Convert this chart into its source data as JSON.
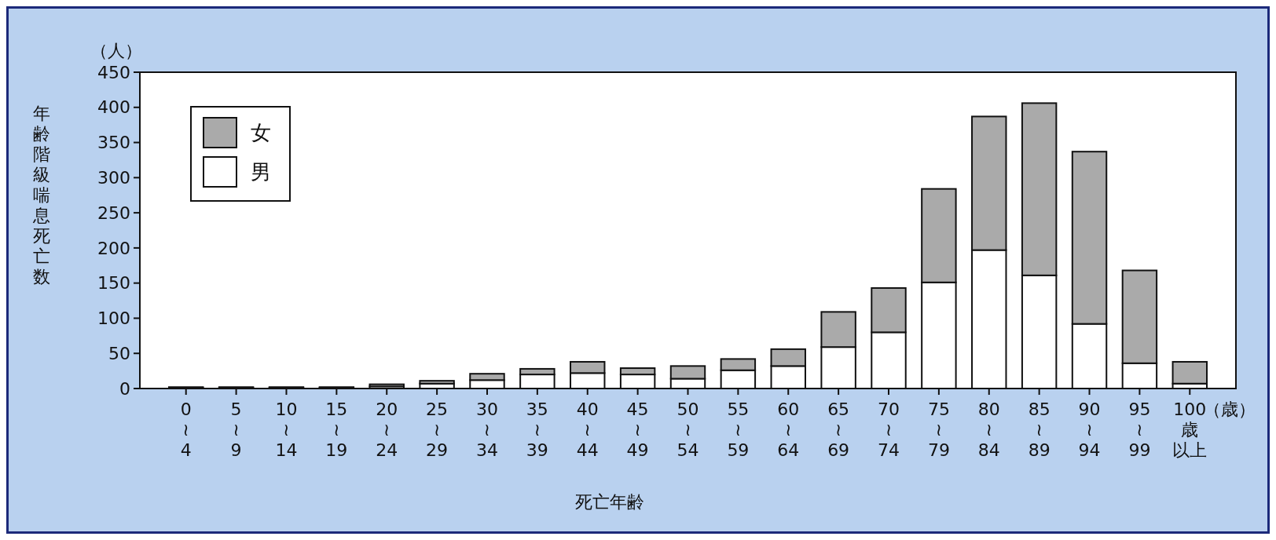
{
  "chart_data": {
    "type": "bar",
    "stacked": true,
    "ylabel": "年齢階級喘息死亡数",
    "xlabel": "死亡年齢",
    "annotations": [
      "（人）",
      "（歳）"
    ],
    "categories": [
      "0\n≀\n4",
      "5\n≀\n9",
      "10\n≀\n14",
      "15\n≀\n19",
      "20\n≀\n24",
      "25\n≀\n29",
      "30\n≀\n34",
      "35\n≀\n39",
      "40\n≀\n44",
      "45\n≀\n49",
      "50\n≀\n54",
      "55\n≀\n59",
      "60\n≀\n64",
      "65\n≀\n69",
      "70\n≀\n74",
      "75\n≀\n79",
      "80\n≀\n84",
      "85\n≀\n89",
      "90\n≀\n94",
      "95\n≀\n99",
      "100\n歳以上"
    ],
    "series": [
      {
        "name": "男",
        "color": "#ffffff",
        "values": [
          1,
          1,
          1,
          1,
          3,
          7,
          12,
          20,
          22,
          20,
          14,
          26,
          32,
          59,
          80,
          151,
          197,
          161,
          92,
          36,
          7
        ]
      },
      {
        "name": "女",
        "color": "#aaaaaa",
        "values": [
          1,
          1,
          1,
          1,
          3,
          4,
          9,
          8,
          16,
          9,
          18,
          16,
          24,
          50,
          63,
          133,
          190,
          245,
          245,
          132,
          31
        ]
      }
    ],
    "ylim": [
      0,
      450
    ],
    "yticks": [
      0,
      50,
      100,
      150,
      200,
      250,
      300,
      350,
      400,
      450
    ],
    "legend": "top left"
  }
}
